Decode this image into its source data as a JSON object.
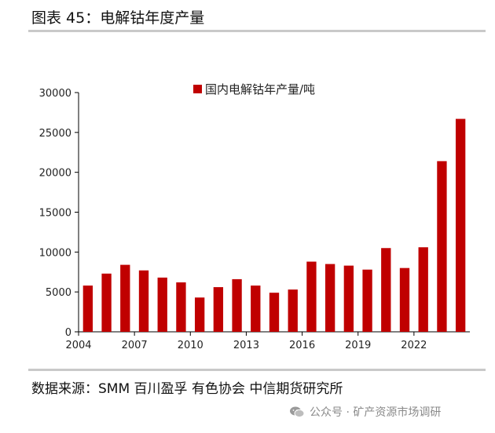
{
  "page": {
    "title": "图表 45：电解钴年度产量",
    "source": "数据来源：SMM 百川盈孚 有色协会 中信期货研究所",
    "watermark": "公众号 · 矿产资源市场调研"
  },
  "colors": {
    "bar": "#c00000",
    "axis": "#000000",
    "rule": "#c9c9c9"
  },
  "chart_data": {
    "type": "bar",
    "title": "",
    "legend": "国内电解钴年产量/吨",
    "legend_position": "top-center",
    "categories": [
      "2004",
      "2005",
      "2006",
      "2007",
      "2008",
      "2009",
      "2010",
      "2011",
      "2012",
      "2013",
      "2014",
      "2015",
      "2016",
      "2017",
      "2018",
      "2019",
      "2020",
      "2021",
      "2022",
      "2023",
      "2024"
    ],
    "x_tick_labels": [
      "2004",
      "2007",
      "2010",
      "2013",
      "2016",
      "2019",
      "2022"
    ],
    "series": [
      {
        "name": "国内电解钴年产量/吨",
        "values": [
          5800,
          7300,
          8400,
          7700,
          6800,
          6200,
          4300,
          5600,
          6600,
          5800,
          4900,
          5300,
          8800,
          8500,
          8300,
          7800,
          10500,
          8000,
          10600,
          21400,
          26700
        ]
      }
    ],
    "y_ticks": [
      "0",
      "5000",
      "10000",
      "15000",
      "20000",
      "25000",
      "30000"
    ],
    "ylim": [
      0,
      30000
    ],
    "xlabel": "",
    "ylabel": "",
    "grid": false
  }
}
